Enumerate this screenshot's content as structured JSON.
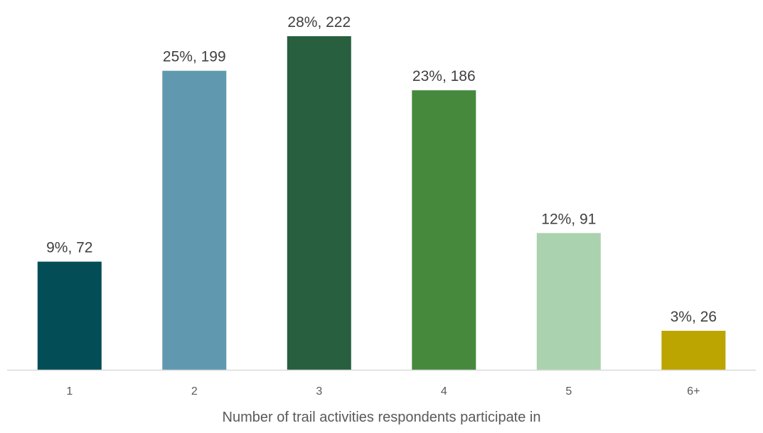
{
  "chart_data": {
    "type": "bar",
    "title": "",
    "xlabel": "Number of trail activities respondents participate in",
    "ylabel": "",
    "categories": [
      "1",
      "2",
      "3",
      "4",
      "5",
      "6+"
    ],
    "values": [
      72,
      199,
      222,
      186,
      91,
      26
    ],
    "data_labels": [
      "9%, 72",
      "25%, 199",
      "28%, 222",
      "23%, 186",
      "12%, 91",
      "3%, 26"
    ],
    "colors": [
      "#024D56",
      "#6099AF",
      "#275F3F",
      "#46893D",
      "#ABD2AE",
      "#BCA501"
    ],
    "ylim": [
      0,
      222
    ],
    "grid": false,
    "legend": "none",
    "axis_line_color": "#D9D9D9"
  }
}
